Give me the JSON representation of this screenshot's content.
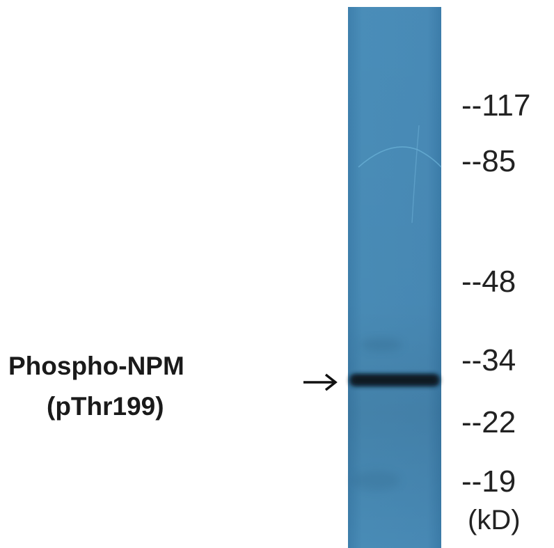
{
  "figure": {
    "protein_label": {
      "line1": "Phospho-NPM",
      "line2": "(pThr199)"
    },
    "markers": [
      {
        "label": "--117",
        "kd": 117
      },
      {
        "label": "--85",
        "kd": 85
      },
      {
        "label": "--48",
        "kd": 48
      },
      {
        "label": "--34",
        "kd": 34
      },
      {
        "label": "--22",
        "kd": 22
      },
      {
        "label": "--19",
        "kd": 19
      }
    ],
    "unit": "(kD)",
    "colors": {
      "membrane": "#4a8db8",
      "membrane_dark": "#3c7aa3",
      "band": "#0f1e2a",
      "text": "#222222"
    },
    "icons": {
      "arrow": "right-arrow-icon"
    }
  }
}
